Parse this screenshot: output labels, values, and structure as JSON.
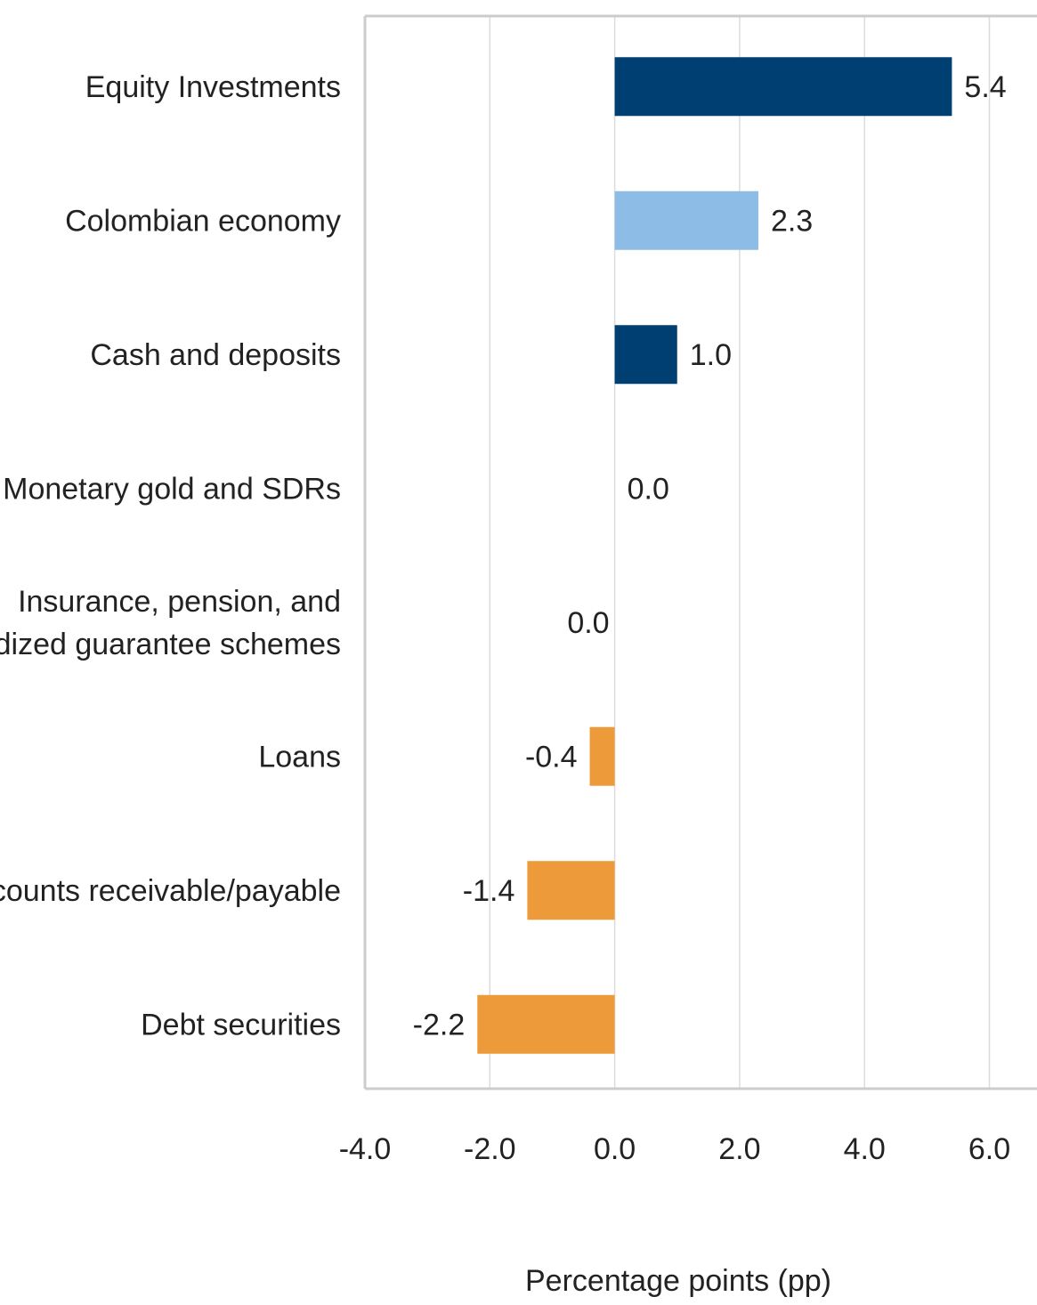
{
  "chart_data": {
    "type": "bar",
    "orientation": "horizontal",
    "categories": [
      "Equity Investments",
      "Colombian economy",
      "Cash and deposits",
      "Monetary gold and SDRs",
      "Insurance, pension, and standardized guarantee schemes",
      "Loans",
      "Other accounts receivable/payable",
      "Debt securities"
    ],
    "category_lines": [
      [
        "Equity Investments"
      ],
      [
        "Colombian economy"
      ],
      [
        "Cash and deposits"
      ],
      [
        "Monetary gold and SDRs"
      ],
      [
        "Insurance, pension, and",
        "standardized guarantee schemes"
      ],
      [
        "Loans"
      ],
      [
        "Other accounts receivable/payable"
      ],
      [
        "Debt securities"
      ]
    ],
    "values": [
      5.4,
      2.3,
      1.0,
      0.0,
      0.0,
      -0.4,
      -1.4,
      -2.2
    ],
    "value_labels": [
      "5.4",
      "2.3",
      "1.0",
      "0.0",
      "0.0",
      "-0.4",
      "-1.4",
      "-2.2"
    ],
    "bar_colors": [
      "#003f72",
      "#8dbde6",
      "#003f72",
      "#003f72",
      "#003f72",
      "#ed9b3a",
      "#ed9b3a",
      "#ed9b3a"
    ],
    "xlim": [
      -4.0,
      6.0
    ],
    "xticks": [
      -4.0,
      -2.0,
      0.0,
      2.0,
      4.0,
      6.0
    ],
    "xtick_labels": [
      "-4.0",
      "-2.0",
      "0.0",
      "2.0",
      "4.0",
      "6.0"
    ],
    "xlabel": "Percentage points (pp)",
    "grid": "vertical",
    "gridline_color": "#dcdcdc",
    "axis_color": "#cccccc",
    "text_color": "#222222"
  }
}
